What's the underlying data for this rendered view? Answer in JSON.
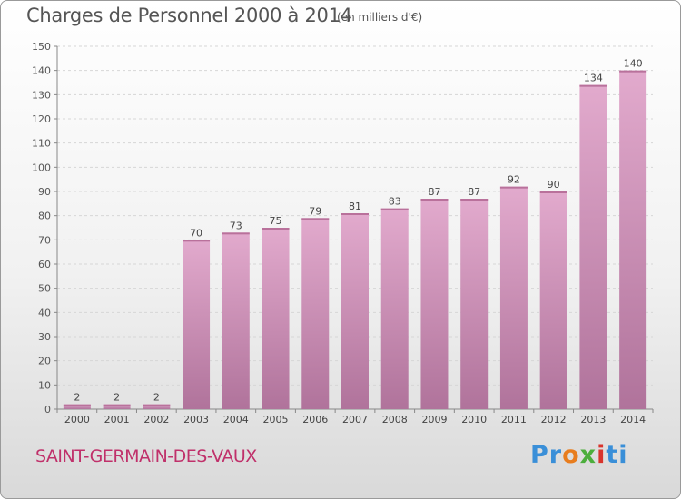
{
  "header": {
    "title": "Charges de Personnel 2000 à 2014",
    "unit_note": "(en milliers d'€)"
  },
  "footer": {
    "commune": "SAINT-GERMAIN-DES-VAUX",
    "logo": [
      "Pr",
      "o",
      "x",
      "i",
      "ti"
    ]
  },
  "colors": {
    "bar_top": "#e2aacd",
    "bar_bottom": "#b0739b",
    "commune_text": "#c0306a"
  },
  "chart_data": {
    "type": "bar",
    "categories": [
      "2000",
      "2001",
      "2002",
      "2003",
      "2004",
      "2005",
      "2006",
      "2007",
      "2008",
      "2009",
      "2010",
      "2011",
      "2012",
      "2013",
      "2014"
    ],
    "values": [
      2,
      2,
      2,
      70,
      73,
      75,
      79,
      81,
      83,
      87,
      87,
      92,
      90,
      134,
      140
    ],
    "title": "Charges de Personnel 2000 à 2014",
    "xlabel": "",
    "ylabel": "",
    "ylim": [
      0,
      150
    ],
    "yticks": [
      0,
      10,
      20,
      30,
      40,
      50,
      60,
      70,
      80,
      90,
      100,
      110,
      120,
      130,
      140,
      150
    ],
    "grid": true,
    "legend": "none"
  }
}
